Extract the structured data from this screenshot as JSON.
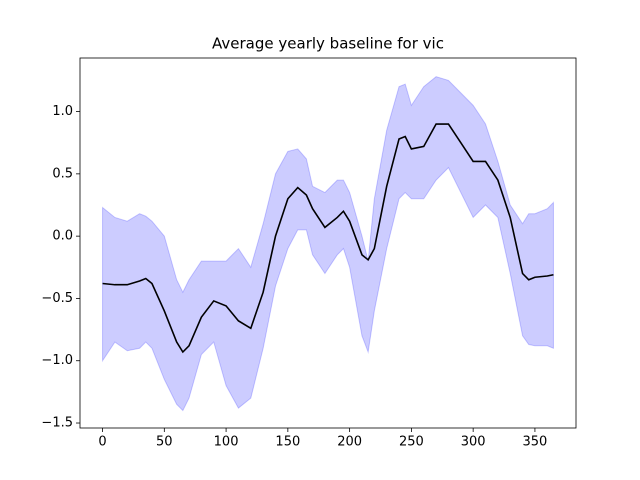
{
  "chart_data": {
    "type": "line",
    "title": "Average yearly baseline for vic",
    "x": [
      0,
      10,
      20,
      30,
      35,
      40,
      50,
      60,
      65,
      70,
      80,
      90,
      100,
      110,
      120,
      130,
      140,
      150,
      158,
      165,
      170,
      180,
      190,
      195,
      200,
      210,
      215,
      220,
      230,
      240,
      245,
      250,
      260,
      270,
      280,
      290,
      300,
      310,
      320,
      330,
      340,
      345,
      350,
      360,
      365
    ],
    "values": [
      -0.38,
      -0.39,
      -0.39,
      -0.36,
      -0.34,
      -0.38,
      -0.6,
      -0.85,
      -0.93,
      -0.88,
      -0.65,
      -0.52,
      -0.56,
      -0.68,
      -0.74,
      -0.45,
      0.0,
      0.3,
      0.39,
      0.33,
      0.22,
      0.07,
      0.15,
      0.2,
      0.12,
      -0.15,
      -0.19,
      -0.1,
      0.4,
      0.78,
      0.8,
      0.7,
      0.72,
      0.9,
      0.9,
      0.75,
      0.6,
      0.6,
      0.45,
      0.15,
      -0.3,
      -0.35,
      -0.33,
      -0.32,
      -0.31
    ],
    "upper": [
      0.23,
      0.15,
      0.12,
      0.18,
      0.16,
      0.12,
      0.0,
      -0.35,
      -0.45,
      -0.35,
      -0.2,
      -0.2,
      -0.2,
      -0.1,
      -0.25,
      0.1,
      0.5,
      0.68,
      0.7,
      0.62,
      0.4,
      0.35,
      0.45,
      0.45,
      0.35,
      0.0,
      -0.2,
      0.3,
      0.85,
      1.2,
      1.22,
      1.05,
      1.2,
      1.28,
      1.25,
      1.15,
      1.05,
      0.9,
      0.6,
      0.25,
      0.1,
      0.18,
      0.18,
      0.22,
      0.27
    ],
    "lower": [
      -1.0,
      -0.85,
      -0.92,
      -0.9,
      -0.85,
      -0.9,
      -1.15,
      -1.35,
      -1.4,
      -1.3,
      -0.95,
      -0.85,
      -1.2,
      -1.38,
      -1.3,
      -0.9,
      -0.4,
      -0.1,
      0.05,
      0.05,
      -0.15,
      -0.3,
      -0.15,
      -0.1,
      -0.25,
      -0.8,
      -0.93,
      -0.6,
      -0.1,
      0.3,
      0.35,
      0.3,
      0.3,
      0.45,
      0.55,
      0.35,
      0.15,
      0.25,
      0.15,
      -0.3,
      -0.8,
      -0.87,
      -0.88,
      -0.88,
      -0.9
    ],
    "color": "#000000",
    "band_color": "#0000ff",
    "xlim": [
      -18.25,
      383.25
    ],
    "xticks": [
      0,
      50,
      100,
      150,
      200,
      250,
      300,
      350
    ],
    "ylim": [
      -1.54,
      1.43
    ],
    "yticks": [
      {
        "value": -1.5,
        "label": "−1.5"
      },
      {
        "value": -1.0,
        "label": "−1.0"
      },
      {
        "value": -0.5,
        "label": "−0.5"
      },
      {
        "value": 0.0,
        "label": "0.0"
      },
      {
        "value": 0.5,
        "label": "0.5"
      },
      {
        "value": 1.0,
        "label": "1.0"
      }
    ]
  }
}
